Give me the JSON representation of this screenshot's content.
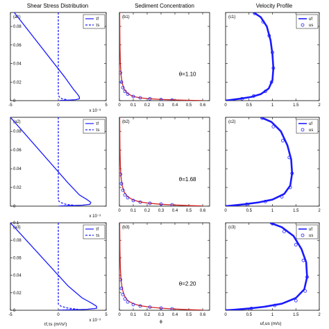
{
  "titles": {
    "col1": "Shear Stress Distribution",
    "col2": "Sediment Concentration",
    "col3": "Velocity Profile"
  },
  "x_labels": {
    "col1": "τf,τs (m²/s²)",
    "col2": "ϕ",
    "col3": "uf,us (m/s)"
  },
  "x_scale_note": "x 10⁻³",
  "legend": {
    "col1": [
      "τf",
      "τs"
    ],
    "col3": [
      "uf",
      "us"
    ]
  },
  "colors": {
    "fluid_line": "#1a1aff",
    "sediment_line": "#d42020",
    "marker": "#1a1aff",
    "axes": "#000000"
  },
  "chart_data": [
    {
      "panel": "(a1)",
      "type": "line",
      "xlim": [
        -5,
        5
      ],
      "ylim": [
        0,
        0.095
      ],
      "xticks": [
        "-5",
        "0",
        "5"
      ],
      "yticks": [
        "0",
        "0.02",
        "0.04",
        "0.06",
        "0.08"
      ],
      "series": [
        {
          "name": "τf",
          "style": "solid",
          "x": [
            -4.6,
            0.7,
            1.6,
            2.0,
            2.2,
            2.2,
            1.8,
            1.0,
            0.3,
            0
          ],
          "y": [
            0.095,
            0.025,
            0.012,
            0.007,
            0.004,
            0.002,
            0.001,
            0.0005,
            0.0002,
            0
          ]
        },
        {
          "name": "τs",
          "style": "dashed",
          "x": [
            0,
            0,
            0.1,
            0.4,
            0.9,
            0.4,
            0
          ],
          "y": [
            0.095,
            0.006,
            0.004,
            0.002,
            0.001,
            0.0004,
            0
          ]
        }
      ]
    },
    {
      "panel": "(b1)",
      "type": "line",
      "xlim": [
        0,
        0.65
      ],
      "ylim": [
        0,
        0.095
      ],
      "xticks": [
        "0",
        "0.1",
        "0.2",
        "0.3",
        "0.4",
        "0.5",
        "0.6"
      ],
      "annotation": "θ=1.10",
      "series": [
        {
          "style": "solid",
          "x": [
            0.002,
            0.004,
            0.007,
            0.012,
            0.02,
            0.035,
            0.06,
            0.1,
            0.15,
            0.22,
            0.3,
            0.4,
            0.5,
            0.6
          ],
          "y": [
            0.095,
            0.06,
            0.04,
            0.028,
            0.019,
            0.012,
            0.0075,
            0.0045,
            0.003,
            0.002,
            0.0013,
            0.0008,
            0.0004,
            0.0001
          ]
        },
        {
          "style": "markers",
          "x": [
            0.008,
            0.015,
            0.025,
            0.04,
            0.06,
            0.1,
            0.15,
            0.22,
            0.3,
            0.38
          ],
          "y": [
            0.03,
            0.02,
            0.014,
            0.01,
            0.007,
            0.0045,
            0.003,
            0.002,
            0.0012,
            0.0006
          ]
        }
      ]
    },
    {
      "panel": "(c1)",
      "type": "line",
      "xlim": [
        0,
        2
      ],
      "ylim": [
        0,
        0.095
      ],
      "xticks": [
        "0",
        "0.5",
        "1",
        "1.5",
        "2"
      ],
      "series": [
        {
          "name": "uf",
          "style": "solid",
          "x": [
            0.6,
            0.75,
            0.88,
            0.96,
            1.0,
            1.02,
            1.0,
            0.92,
            0.75,
            0.55,
            0.3,
            0.1,
            0
          ],
          "y": [
            0.095,
            0.09,
            0.08,
            0.065,
            0.05,
            0.035,
            0.022,
            0.013,
            0.007,
            0.004,
            0.002,
            0.0007,
            0
          ]
        },
        {
          "name": "us",
          "style": "markers",
          "x": [
            0.62,
            0.8,
            0.93,
            1.0,
            1.02,
            0.98,
            0.85,
            0.6,
            0.35
          ],
          "y": [
            0.094,
            0.085,
            0.07,
            0.052,
            0.035,
            0.02,
            0.01,
            0.005,
            0.002
          ]
        }
      ]
    },
    {
      "panel": "(a2)",
      "type": "line",
      "xlim": [
        -5,
        5
      ],
      "ylim": [
        0,
        0.095
      ],
      "xticks": [],
      "yticks": [
        "0",
        "0.02",
        "0.04",
        "0.06",
        "0.08"
      ],
      "series": [
        {
          "name": "τf",
          "style": "solid",
          "x": [
            -5,
            1.0,
            2.2,
            3.0,
            3.4,
            3.3,
            2.5,
            1.2,
            0.3,
            0
          ],
          "y": [
            0.095,
            0.025,
            0.012,
            0.007,
            0.004,
            0.002,
            0.001,
            0.0005,
            0.0002,
            0
          ]
        },
        {
          "name": "τs",
          "style": "dashed",
          "x": [
            0,
            0,
            0.2,
            0.8,
            1.6,
            0.6,
            0
          ],
          "y": [
            0.095,
            0.006,
            0.004,
            0.002,
            0.001,
            0.0004,
            0
          ]
        }
      ]
    },
    {
      "panel": "(b2)",
      "type": "line",
      "xlim": [
        0,
        0.65
      ],
      "ylim": [
        0,
        0.095
      ],
      "xticks": [
        "0",
        "0.1",
        "0.2",
        "0.3",
        "0.4",
        "0.5",
        "0.6"
      ],
      "annotation": "θ=1.68",
      "series": [
        {
          "style": "solid",
          "x": [
            0.002,
            0.004,
            0.007,
            0.012,
            0.02,
            0.035,
            0.06,
            0.1,
            0.15,
            0.22,
            0.3,
            0.4,
            0.5,
            0.6
          ],
          "y": [
            0.095,
            0.062,
            0.043,
            0.031,
            0.022,
            0.015,
            0.01,
            0.0065,
            0.0045,
            0.003,
            0.002,
            0.0012,
            0.0006,
            0.0002
          ]
        },
        {
          "style": "markers",
          "x": [
            0.008,
            0.015,
            0.025,
            0.04,
            0.06,
            0.1,
            0.15,
            0.22,
            0.3,
            0.38
          ],
          "y": [
            0.034,
            0.024,
            0.017,
            0.012,
            0.009,
            0.006,
            0.0042,
            0.003,
            0.0022,
            0.0014
          ]
        }
      ]
    },
    {
      "panel": "(c2)",
      "type": "line",
      "xlim": [
        0,
        2
      ],
      "ylim": [
        0,
        0.095
      ],
      "xticks": [
        "0",
        "0.5",
        "1",
        "1.5",
        "2"
      ],
      "series": [
        {
          "name": "uf",
          "style": "solid",
          "x": [
            0.75,
            0.98,
            1.18,
            1.32,
            1.4,
            1.42,
            1.38,
            1.25,
            1.0,
            0.7,
            0.4,
            0.15,
            0
          ],
          "y": [
            0.095,
            0.09,
            0.08,
            0.065,
            0.05,
            0.035,
            0.022,
            0.013,
            0.007,
            0.004,
            0.002,
            0.0007,
            0
          ]
        },
        {
          "name": "us",
          "style": "markers",
          "x": [
            0.78,
            1.02,
            1.22,
            1.36,
            1.42,
            1.38,
            1.2,
            0.85,
            0.45
          ],
          "y": [
            0.094,
            0.085,
            0.07,
            0.052,
            0.035,
            0.02,
            0.01,
            0.005,
            0.002
          ]
        }
      ]
    },
    {
      "panel": "(a3)",
      "type": "line",
      "xlim": [
        -5,
        5
      ],
      "ylim": [
        0,
        0.1
      ],
      "xticks": [
        "-5",
        "0",
        "5"
      ],
      "yticks": [
        "0",
        "0.02",
        "0.04",
        "0.06",
        "0.08",
        "0.1"
      ],
      "series": [
        {
          "name": "τf",
          "style": "solid",
          "x": [
            -5,
            1.0,
            2.5,
            3.5,
            4.0,
            4.0,
            3.0,
            1.5,
            0.4,
            0
          ],
          "y": [
            0.1,
            0.028,
            0.014,
            0.008,
            0.0045,
            0.0022,
            0.0011,
            0.0005,
            0.0002,
            0
          ]
        },
        {
          "name": "τs",
          "style": "dashed",
          "x": [
            0,
            0,
            0.3,
            1.0,
            2.0,
            0.8,
            0
          ],
          "y": [
            0.1,
            0.007,
            0.0045,
            0.0025,
            0.0012,
            0.0005,
            0
          ]
        }
      ]
    },
    {
      "panel": "(b3)",
      "type": "line",
      "xlim": [
        0,
        0.65
      ],
      "ylim": [
        0,
        0.1
      ],
      "xticks": [
        "0",
        "0.1",
        "0.2",
        "0.3",
        "0.4",
        "0.5",
        "0.6"
      ],
      "annotation": "θ=2.20",
      "series": [
        {
          "style": "solid",
          "x": [
            0.002,
            0.004,
            0.007,
            0.012,
            0.02,
            0.035,
            0.06,
            0.1,
            0.15,
            0.22,
            0.3,
            0.4,
            0.5,
            0.6
          ],
          "y": [
            0.1,
            0.068,
            0.048,
            0.035,
            0.025,
            0.017,
            0.011,
            0.0075,
            0.0052,
            0.0036,
            0.0024,
            0.0014,
            0.0007,
            0.0002
          ]
        },
        {
          "style": "markers",
          "x": [
            0.008,
            0.015,
            0.025,
            0.04,
            0.06,
            0.1,
            0.15,
            0.22,
            0.3,
            0.38
          ],
          "y": [
            0.035,
            0.025,
            0.018,
            0.013,
            0.0095,
            0.0065,
            0.0048,
            0.0035,
            0.0025,
            0.0016
          ]
        }
      ]
    },
    {
      "panel": "(c3)",
      "type": "line",
      "xlim": [
        0,
        2
      ],
      "ylim": [
        0,
        0.1
      ],
      "xticks": [
        "0",
        "0.5",
        "1",
        "1.5",
        "2"
      ],
      "series": [
        {
          "name": "uf",
          "style": "solid",
          "x": [
            0.95,
            1.2,
            1.45,
            1.62,
            1.72,
            1.74,
            1.68,
            1.5,
            1.2,
            0.85,
            0.5,
            0.2,
            0
          ],
          "y": [
            0.1,
            0.095,
            0.085,
            0.07,
            0.055,
            0.038,
            0.024,
            0.014,
            0.0075,
            0.0042,
            0.002,
            0.0007,
            0
          ]
        },
        {
          "name": "us",
          "style": "markers",
          "x": [
            1.0,
            1.25,
            1.5,
            1.66,
            1.74,
            1.7,
            1.5,
            1.05,
            0.55
          ],
          "y": [
            0.099,
            0.09,
            0.075,
            0.057,
            0.038,
            0.022,
            0.011,
            0.0055,
            0.0022
          ]
        }
      ]
    }
  ]
}
